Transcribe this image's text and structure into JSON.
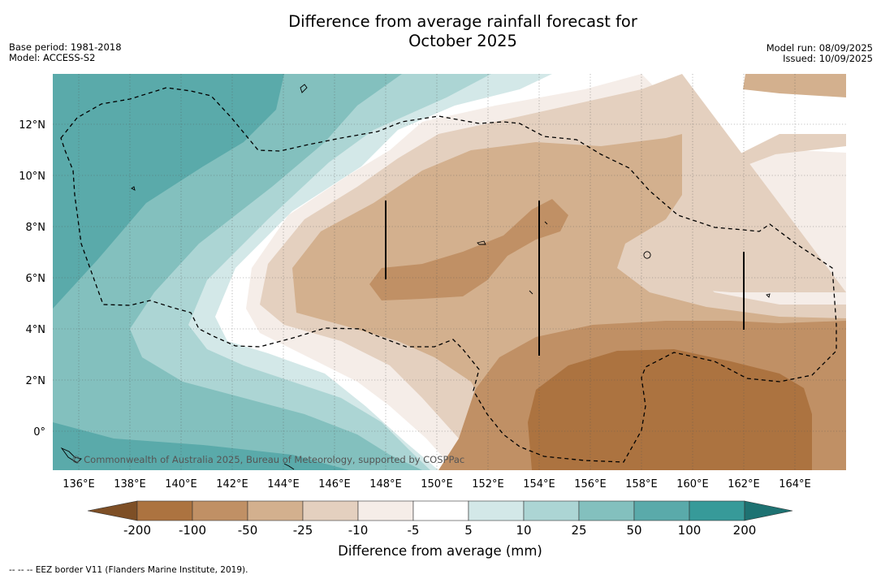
{
  "header": {
    "title_line1": "Difference from average rainfall forecast for",
    "title_line2": "October 2025",
    "base_period": "Base period: 1981-2018",
    "model": "Model: ACCESS-S2",
    "model_run": "Model run: 08/09/2025",
    "issued": "Issued: 10/09/2025"
  },
  "map": {
    "latitude_labels": [
      "12°N",
      "10°N",
      "8°N",
      "6°N",
      "4°N",
      "2°N",
      "0°"
    ],
    "longitude_labels": [
      "136°E",
      "138°E",
      "140°E",
      "142°E",
      "144°E",
      "146°E",
      "148°E",
      "150°E",
      "152°E",
      "154°E",
      "156°E",
      "158°E",
      "160°E",
      "162°E",
      "164°E"
    ],
    "copyright": "© Commonwealth of Australia 2025, Bureau of Meteorology, supported by COSPPac"
  },
  "colorbar": {
    "labels": [
      "-200",
      "-100",
      "-50",
      "-25",
      "-10",
      "-5",
      "5",
      "10",
      "25",
      "50",
      "100",
      "200"
    ],
    "colors": [
      "#7e4f26",
      "#ac7340",
      "#c09065",
      "#d3b08e",
      "#e4d0bf",
      "#f5ede8",
      "#ffffff",
      "#d3e8e8",
      "#acd5d4",
      "#83c0be",
      "#5aaaaa",
      "#379a99",
      "#1e7272"
    ],
    "axis_label": "Difference from average (mm)"
  },
  "footer": {
    "eez_note": "--  --  -- EEZ border V11 (Flanders Marine Institute, 2019)."
  }
}
